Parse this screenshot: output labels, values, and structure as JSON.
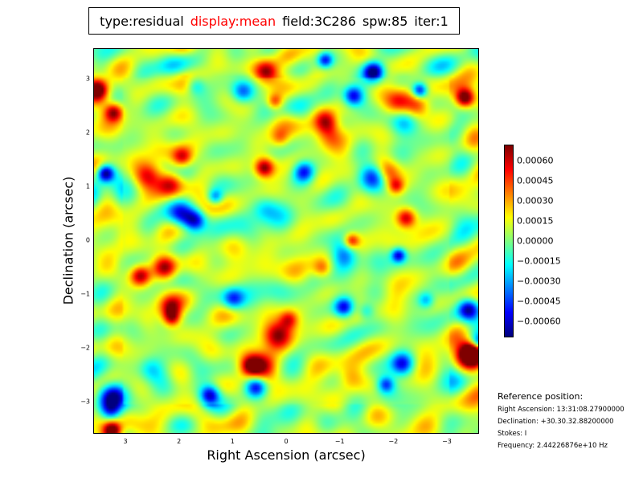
{
  "title": {
    "parts": [
      {
        "text": "type:residual",
        "color": "#000000"
      },
      {
        "text": "display:mean",
        "color": "#ff0000"
      },
      {
        "text": "field:3C286",
        "color": "#000000"
      },
      {
        "text": "spw:85",
        "color": "#000000"
      },
      {
        "text": "iter:1",
        "color": "#000000"
      }
    ]
  },
  "chart_data": {
    "type": "heatmap",
    "colormap": "jet",
    "xlabel": "Right Ascension (arcsec)",
    "ylabel": "Declination (arcsec)",
    "xlim": [
      3.6,
      -3.6
    ],
    "ylim": [
      -3.6,
      3.57
    ],
    "x_ticks": [
      3,
      2,
      1,
      0,
      -1,
      -2,
      -3
    ],
    "x_tick_labels": [
      "3",
      "2",
      "1",
      "0",
      "−1",
      "−2",
      "−3"
    ],
    "y_ticks": [
      3,
      2,
      1,
      0,
      -1,
      -2,
      -3
    ],
    "y_tick_labels": [
      "3",
      "2",
      "1",
      "0",
      "−1",
      "−2",
      "−3"
    ],
    "clim": [
      -0.00072,
      0.00072
    ],
    "colorbar_ticks": [
      0.0006,
      0.00045,
      0.0003,
      0.00015,
      0.0,
      -0.00015,
      -0.0003,
      -0.00045,
      -0.0006
    ],
    "colorbar_tick_labels": [
      "0.00060",
      "0.00045",
      "0.00030",
      "0.00015",
      "0.00000",
      "−0.00015",
      "−0.00030",
      "−0.00045",
      "−0.00060"
    ]
  },
  "reference": {
    "heading": "Reference position:",
    "ra": "Right Ascension: 13:31:08.27900000",
    "dec": "Declination: +30.30.32.88200000",
    "stokes": "Stokes: I",
    "frequency": "Frequency: 2.44226876e+10 Hz"
  }
}
